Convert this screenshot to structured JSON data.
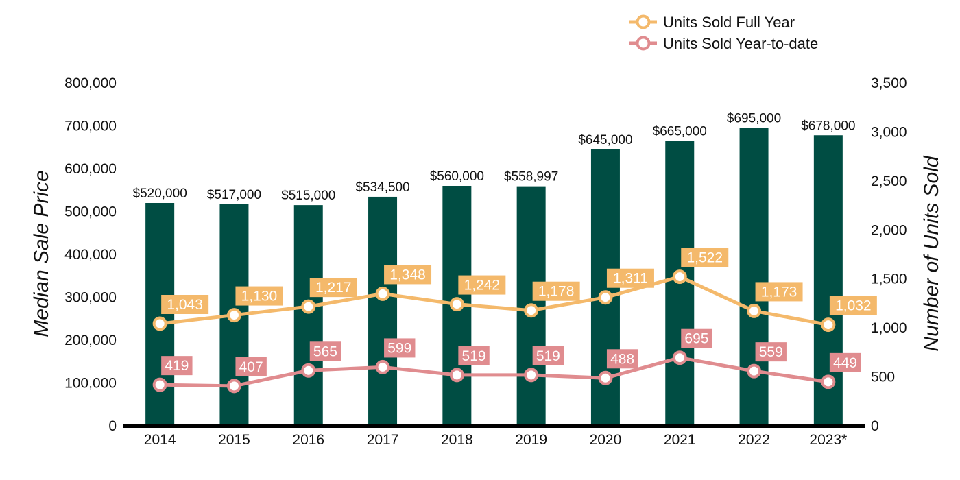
{
  "chart_data": {
    "type": "bar",
    "categories": [
      "2014",
      "2015",
      "2016",
      "2017",
      "2018",
      "2019",
      "2020",
      "2021",
      "2022",
      "2023*"
    ],
    "ylabel": "Median Sale Price",
    "y2label": "Number of Units Sold",
    "ylim": [
      0,
      800000
    ],
    "y2lim": [
      0,
      3500
    ],
    "y_ticks": [
      "0",
      "100,000",
      "200,000",
      "300,000",
      "400,000",
      "500,000",
      "600,000",
      "700,000",
      "800,000"
    ],
    "y2_ticks": [
      "0",
      "500",
      "1,000",
      "1,500",
      "2,000",
      "2,500",
      "3,000",
      "3,500"
    ],
    "legend_position": "top-right",
    "bars": {
      "values": [
        520000,
        517000,
        515000,
        534500,
        560000,
        558997,
        645000,
        665000,
        695000,
        678000
      ],
      "labels": [
        "$520,000",
        "$517,000",
        "$515,000",
        "$534,500",
        "$560,000",
        "$558,997",
        "$645,000",
        "$665,000",
        "$695,000",
        "$678,000"
      ],
      "color": "#004d43"
    },
    "series": [
      {
        "name": "Units Sold Full Year",
        "type": "line",
        "axis": "right",
        "values": [
          1043,
          1130,
          1217,
          1348,
          1242,
          1178,
          1311,
          1522,
          1173,
          1032
        ],
        "labels": [
          "1,043",
          "1,130",
          "1,217",
          "1,348",
          "1,242",
          "1,178",
          "1,311",
          "1,522",
          "1,173",
          "1,032"
        ],
        "color": "#f4b96b"
      },
      {
        "name": "Units Sold Year-to-date",
        "type": "line",
        "axis": "right",
        "values": [
          419,
          407,
          565,
          599,
          519,
          519,
          488,
          695,
          559,
          449
        ],
        "labels": [
          "419",
          "407",
          "565",
          "599",
          "519",
          "519",
          "488",
          "695",
          "559",
          "449"
        ],
        "color": "#e08c8f"
      }
    ]
  }
}
